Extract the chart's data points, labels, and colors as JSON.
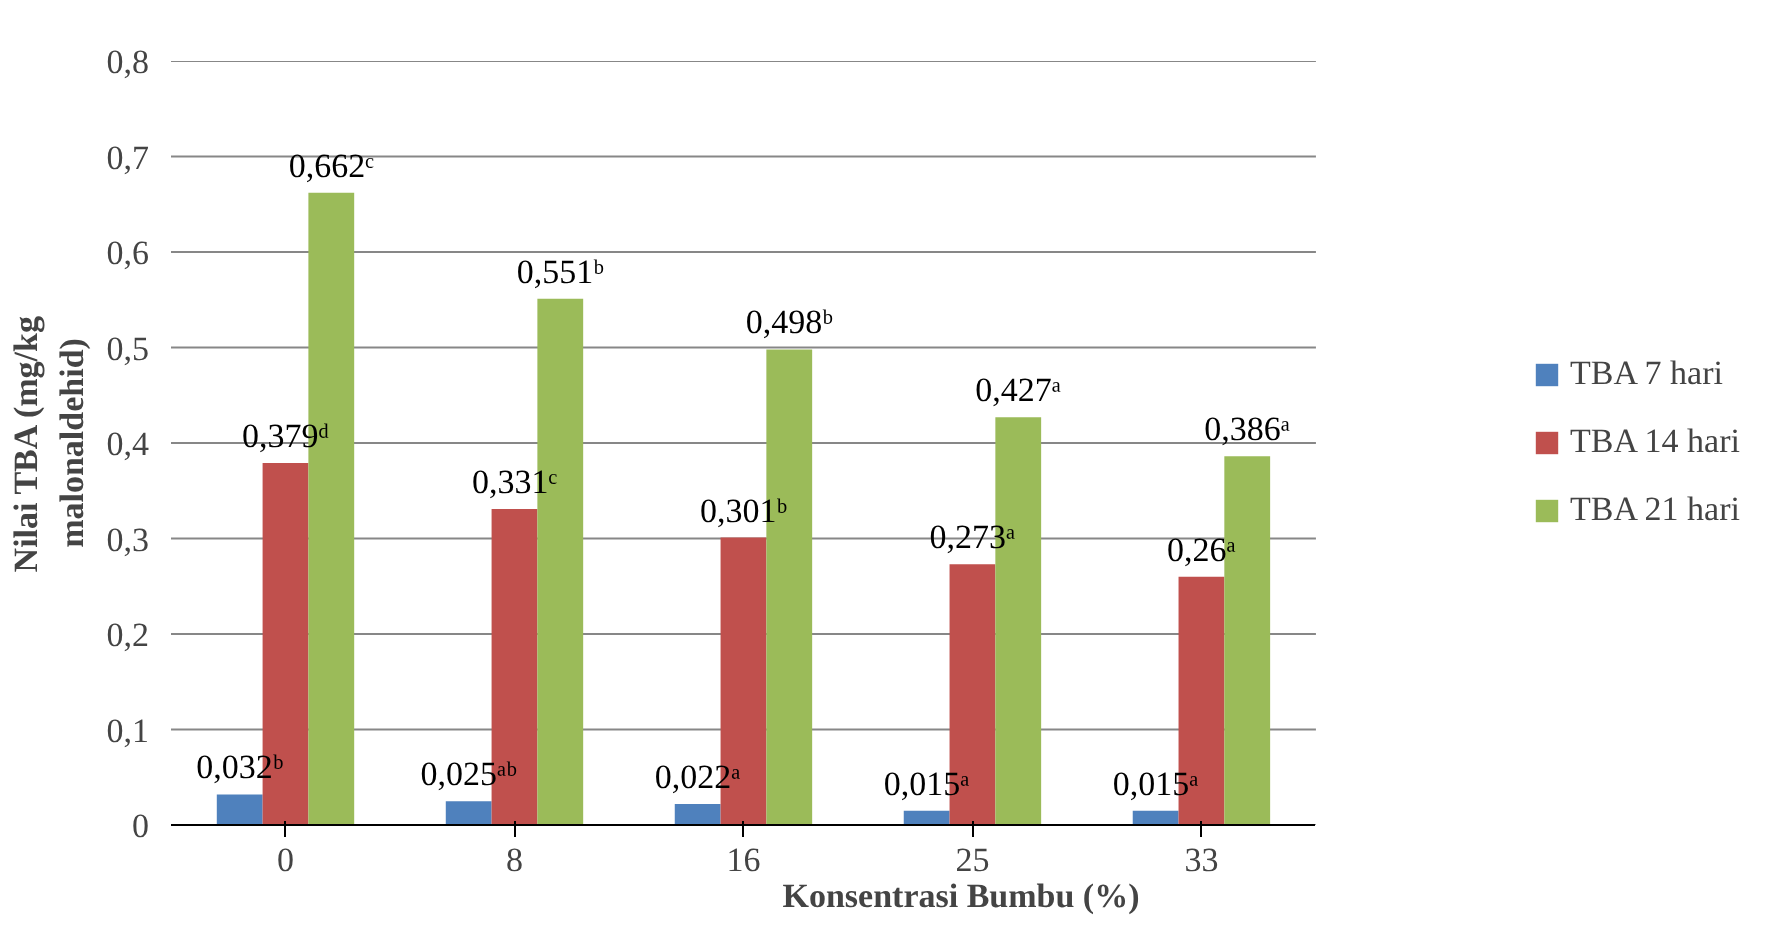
{
  "chart_data": {
    "type": "bar",
    "xlabel": "Konsentrasi Bumbu (%)",
    "ylabel": "Nilai TBA (mg/kg\nmalonaldehid)",
    "categories": [
      "0",
      "8",
      "16",
      "25",
      "33"
    ],
    "series": [
      {
        "name": "TBA 7 hari",
        "color": "#4f81bd",
        "values": [
          0.032,
          0.025,
          0.022,
          0.015,
          0.015
        ],
        "value_labels": [
          "0,032ᵇ",
          "0,025ᵃᵇ",
          "0,022ᵃ",
          "0,015ᵃ",
          "0,015ᵃ"
        ]
      },
      {
        "name": "TBA 14 hari",
        "color": "#c0504d",
        "values": [
          0.379,
          0.331,
          0.301,
          0.273,
          0.26
        ],
        "value_labels": [
          "0,379ᵈ",
          "0,331ᶜ",
          "0,301ᵇ",
          "0,273ᵃ",
          "0,26ᵃ"
        ]
      },
      {
        "name": "TBA 21 hari",
        "color": "#9bbb59",
        "values": [
          0.662,
          0.551,
          0.498,
          0.427,
          0.386
        ],
        "value_labels": [
          "0,662ᶜ",
          "0,551ᵇ",
          "0,498ᵇ",
          "0,427ᵃ",
          "0,386ᵃ"
        ]
      }
    ],
    "ylim": [
      0,
      0.8
    ],
    "yticks": [
      {
        "value": 0,
        "label": "0"
      },
      {
        "value": 0.1,
        "label": "0,1"
      },
      {
        "value": 0.2,
        "label": "0,2"
      },
      {
        "value": 0.3,
        "label": "0,3"
      },
      {
        "value": 0.4,
        "label": "0,4"
      },
      {
        "value": 0.5,
        "label": "0,5"
      },
      {
        "value": 0.6,
        "label": "0,6"
      },
      {
        "value": 0.7,
        "label": "0,7"
      },
      {
        "value": 0.8,
        "label": "0,8"
      }
    ],
    "grid": "y",
    "legend": "right"
  }
}
